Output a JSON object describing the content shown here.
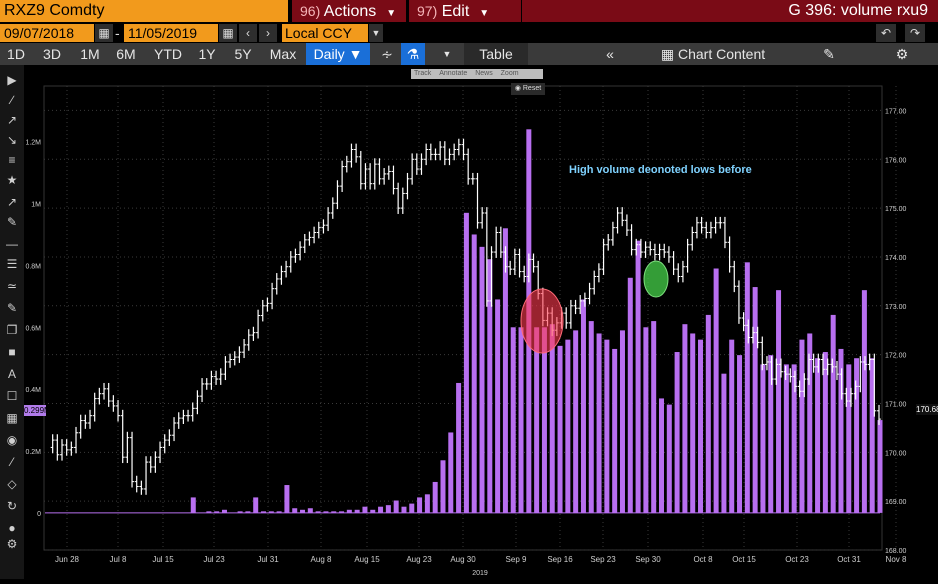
{
  "header": {
    "ticker": "RXZ9 Comdty",
    "actions_num": "96)",
    "actions_label": "Actions",
    "edit_num": "97)",
    "edit_label": "Edit",
    "chart_title": "G 396: volume rxu9"
  },
  "daterange": {
    "start": "09/07/2018",
    "sep": "-",
    "end": "11/05/2019",
    "currency": "Local CCY",
    "cal_icon": "calendar-icon",
    "prev_icon": "chevron-left-icon",
    "next_icon": "chevron-right-icon"
  },
  "toolbar": {
    "periods": [
      "1D",
      "3D",
      "1M",
      "6M",
      "YTD",
      "1Y",
      "5Y",
      "Max"
    ],
    "frequency": "Daily",
    "table_label": "Table",
    "chart_content_label": "Chart Content"
  },
  "chart_tools": [
    "Track",
    "Annotate",
    "News",
    "Zoom"
  ],
  "reset_label": "Reset",
  "annotation": "High volume deonoted lows before",
  "colors": {
    "volume": "#b86ff0",
    "price": "#ffffff",
    "red_circle": "#ff3a4f",
    "green_circle": "#45d14a",
    "orange": "#f29a1c",
    "maroon": "#7a0b16"
  },
  "chart_data": {
    "type": "bar",
    "title": "",
    "x_ticks": [
      "Jun 28",
      "Jul 8",
      "Jul 15",
      "Jul 23",
      "Jul 31",
      "Aug 8",
      "Aug 15",
      "Aug 23",
      "Aug 30",
      "Sep 9",
      "Sep 16",
      "Sep 23",
      "Sep 30",
      "Oct 8",
      "Oct 15",
      "Oct 23",
      "Oct 31",
      "Nov 8"
    ],
    "x_year_label": "2019",
    "left_axis_ticks": [
      "1.2M",
      "1M",
      "0.8M",
      "0.6M",
      "0.4M",
      "0.2M",
      "0"
    ],
    "right_axis_ticks": [
      "177.00",
      "176.00",
      "175.00",
      "174.00",
      "173.00",
      "172.00",
      "171.00",
      "170.00",
      "169.00",
      "168.00"
    ],
    "left_ylim": [
      -0.12,
      1.38
    ],
    "right_ylim": [
      168.0,
      177.5
    ],
    "volume_last_label": "0.299M",
    "price_last_label": "170.68",
    "series": [
      {
        "name": "Volume",
        "unit": "M",
        "values": [
          0,
          0,
          0,
          0,
          0,
          0,
          0,
          0,
          0,
          0,
          0,
          0,
          0,
          0,
          0,
          0,
          0,
          0,
          0,
          0.05,
          0,
          0.005,
          0.005,
          0.01,
          0,
          0.005,
          0.005,
          0.05,
          0.005,
          0.005,
          0.005,
          0.09,
          0.015,
          0.01,
          0.015,
          0.005,
          0.005,
          0.005,
          0.005,
          0.01,
          0.01,
          0.02,
          0.01,
          0.02,
          0.025,
          0.04,
          0.02,
          0.03,
          0.05,
          0.06,
          0.1,
          0.17,
          0.26,
          0.42,
          0.97,
          0.9,
          0.86,
          0.82,
          0.69,
          0.92,
          0.6,
          0.6,
          1.24,
          0.6,
          0.6,
          0.61,
          0.54,
          0.56,
          0.59,
          0.69,
          0.62,
          0.58,
          0.56,
          0.53,
          0.59,
          0.76,
          0.88,
          0.6,
          0.62,
          0.37,
          0.35,
          0.52,
          0.61,
          0.58,
          0.56,
          0.64,
          0.79,
          0.45,
          0.56,
          0.51,
          0.81,
          0.73,
          0.48,
          0.51,
          0.72,
          0.48,
          0.48,
          0.56,
          0.58,
          0.5,
          0.52,
          0.64,
          0.53,
          0.48,
          0.5,
          0.72,
          0.5,
          0.3
        ]
      },
      {
        "name": "Price",
        "values": [
          170.1,
          170.25,
          169.95,
          170.15,
          170.05,
          170.1,
          170.4,
          170.65,
          170.6,
          170.75,
          171.1,
          171.2,
          171.3,
          171.05,
          170.95,
          170.75,
          169.9,
          170.3,
          169.4,
          169.3,
          169.25,
          169.8,
          169.7,
          169.9,
          170.1,
          170.25,
          170.35,
          170.6,
          170.7,
          170.75,
          170.75,
          170.9,
          171.15,
          171.4,
          171.4,
          171.55,
          171.5,
          171.6,
          171.85,
          171.9,
          171.95,
          172.05,
          172.2,
          172.4,
          172.45,
          172.8,
          173.0,
          173.05,
          173.35,
          173.55,
          173.7,
          173.8,
          174.0,
          174.05,
          174.2,
          174.35,
          174.4,
          174.5,
          174.6,
          174.65,
          174.9,
          175.1,
          175.45,
          175.85,
          175.95,
          176.2,
          176.05,
          175.5,
          175.8,
          175.5,
          175.9,
          175.6,
          175.7,
          175.75,
          175.4,
          175.0,
          175.3,
          175.6,
          176.0,
          175.8,
          176.0,
          176.2,
          176.1,
          176.1,
          176.25,
          176.0,
          176.1,
          176.2,
          176.3,
          176.1,
          175.6,
          175.6,
          174.7,
          174.9,
          173.1,
          174.1,
          174.5,
          174.1,
          173.8,
          173.75,
          174.05,
          173.7,
          173.6,
          173.95,
          173.8,
          173.25,
          172.7,
          172.85,
          172.5,
          172.65,
          172.85,
          172.65,
          173.0,
          172.95,
          173.1,
          173.15,
          173.35,
          173.6,
          173.75,
          174.25,
          174.35,
          174.6,
          174.9,
          174.75,
          174.55,
          174.15,
          174.25,
          174.1,
          174.2,
          174.15,
          174.05,
          174.15,
          174.1,
          174.0,
          173.75,
          173.6,
          173.8,
          174.25,
          174.5,
          174.7,
          174.6,
          174.5,
          174.6,
          174.7,
          174.7,
          174.3,
          173.8,
          173.4,
          172.75,
          172.6,
          172.35,
          172.45,
          172.25,
          171.8,
          171.85,
          171.5,
          171.8,
          171.65,
          171.6,
          171.55,
          171.35,
          171.25,
          171.5,
          171.9,
          171.75,
          171.9,
          171.7,
          171.8,
          171.75,
          171.6,
          171.2,
          171.05,
          171.2,
          171.35,
          171.85,
          171.8,
          171.9,
          170.85,
          170.68
        ]
      }
    ],
    "annotations": [
      {
        "text": "High volume deonoted lows before"
      }
    ]
  }
}
